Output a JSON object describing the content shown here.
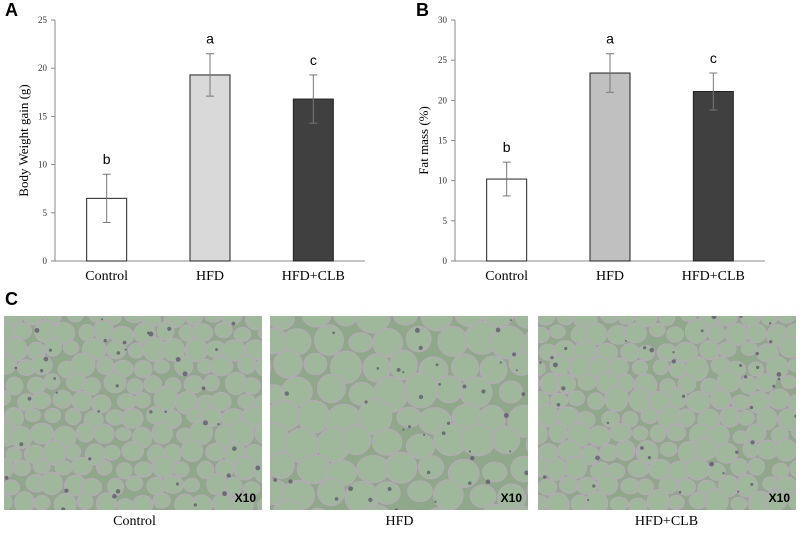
{
  "panels": {
    "a": {
      "letter": "A"
    },
    "b": {
      "letter": "B"
    },
    "c": {
      "letter": "C"
    }
  },
  "chart_data": [
    {
      "type": "bar",
      "categories": [
        "Control",
        "HFD",
        "HFD+CLB"
      ],
      "values": [
        6.5,
        19.3,
        16.8
      ],
      "errors": [
        2.5,
        2.2,
        2.5
      ],
      "significance": [
        "b",
        "a",
        "c"
      ],
      "bar_colors": [
        "#ffffff",
        "#d9d9d9",
        "#404040"
      ],
      "ylabel": "Body Weight gain (g)",
      "xlabel": "",
      "ylim": [
        0,
        25
      ],
      "yticks": [
        0,
        5,
        10,
        15,
        20,
        25
      ],
      "grid": false
    },
    {
      "type": "bar",
      "categories": [
        "Control",
        "HFD",
        "HFD+CLB"
      ],
      "values": [
        10.2,
        23.4,
        21.1
      ],
      "errors": [
        2.1,
        2.4,
        2.3
      ],
      "significance": [
        "b",
        "a",
        "c"
      ],
      "bar_colors": [
        "#ffffff",
        "#c0c0c0",
        "#404040"
      ],
      "ylabel": "Fat mass (%)",
      "xlabel": "",
      "ylim": [
        0,
        30
      ],
      "yticks": [
        0,
        5,
        10,
        15,
        20,
        25,
        30
      ],
      "grid": false
    }
  ],
  "histology": {
    "images": [
      {
        "caption": "Control",
        "magnification": "X10"
      },
      {
        "caption": "HFD",
        "magnification": "X10"
      },
      {
        "caption": "HFD+CLB",
        "magnification": "X10"
      }
    ]
  }
}
